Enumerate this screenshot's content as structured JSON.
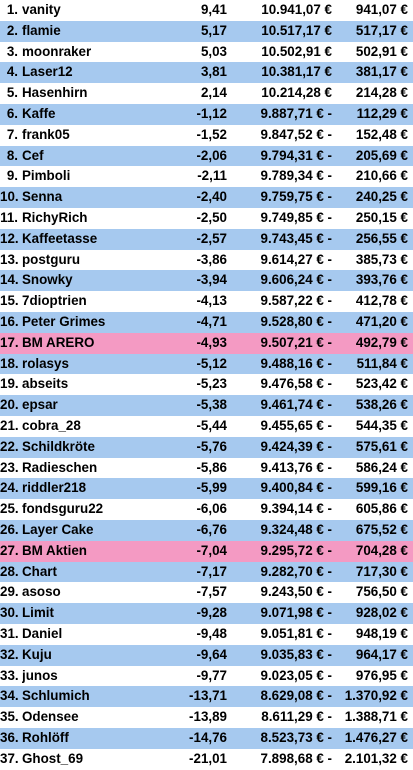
{
  "colors": {
    "white_row": "#ffffff",
    "blue_row": "#a6c9ef",
    "pink_row": "#f49ac3",
    "text": "#000000"
  },
  "rows": [
    {
      "rank": "1.",
      "name": "vanity",
      "pct": "9,41",
      "value": "10.941,07 €",
      "diff": "941,07 €",
      "style": "odd"
    },
    {
      "rank": "2.",
      "name": "flamie",
      "pct": "5,17",
      "value": "10.517,17 €",
      "diff": "517,17 €",
      "style": "even"
    },
    {
      "rank": "3.",
      "name": "moonraker",
      "pct": "5,03",
      "value": "10.502,91 €",
      "diff": "502,91 €",
      "style": "odd"
    },
    {
      "rank": "4.",
      "name": "Laser12",
      "pct": "3,81",
      "value": "10.381,17 €",
      "diff": "381,17 €",
      "style": "even"
    },
    {
      "rank": "5.",
      "name": "Hasenhirn",
      "pct": "2,14",
      "value": "10.214,28 €",
      "diff": "214,28 €",
      "style": "odd"
    },
    {
      "rank": "6.",
      "name": "Kaffe",
      "pct": "-1,12",
      "value": "9.887,71 € -",
      "diff": "112,29 €",
      "style": "even"
    },
    {
      "rank": "7.",
      "name": "frank05",
      "pct": "-1,52",
      "value": "9.847,52 € -",
      "diff": "152,48 €",
      "style": "odd"
    },
    {
      "rank": "8.",
      "name": "Cef",
      "pct": "-2,06",
      "value": "9.794,31 € -",
      "diff": "205,69 €",
      "style": "even"
    },
    {
      "rank": "9.",
      "name": "Pimboli",
      "pct": "-2,11",
      "value": "9.789,34 € -",
      "diff": "210,66 €",
      "style": "odd"
    },
    {
      "rank": "10.",
      "name": "Senna",
      "pct": "-2,40",
      "value": "9.759,75 € -",
      "diff": "240,25 €",
      "style": "even"
    },
    {
      "rank": "11.",
      "name": "RichyRich",
      "pct": "-2,50",
      "value": "9.749,85 € -",
      "diff": "250,15 €",
      "style": "odd"
    },
    {
      "rank": "12.",
      "name": "Kaffeetasse",
      "pct": "-2,57",
      "value": "9.743,45 € -",
      "diff": "256,55 €",
      "style": "even"
    },
    {
      "rank": "13.",
      "name": "postguru",
      "pct": "-3,86",
      "value": "9.614,27 € -",
      "diff": "385,73 €",
      "style": "odd"
    },
    {
      "rank": "14.",
      "name": "Snowky",
      "pct": "-3,94",
      "value": "9.606,24 € -",
      "diff": "393,76 €",
      "style": "even"
    },
    {
      "rank": "15.",
      "name": "7dioptrien",
      "pct": "-4,13",
      "value": "9.587,22 € -",
      "diff": "412,78 €",
      "style": "odd"
    },
    {
      "rank": "16.",
      "name": "Peter Grimes",
      "pct": "-4,71",
      "value": "9.528,80 € -",
      "diff": "471,20 €",
      "style": "even"
    },
    {
      "rank": "17.",
      "name": "BM ARERO",
      "pct": "-4,93",
      "value": "9.507,21 € -",
      "diff": "492,79 €",
      "style": "bm"
    },
    {
      "rank": "18.",
      "name": "rolasys",
      "pct": "-5,12",
      "value": "9.488,16 € -",
      "diff": "511,84 €",
      "style": "even"
    },
    {
      "rank": "19.",
      "name": "abseits",
      "pct": "-5,23",
      "value": "9.476,58 € -",
      "diff": "523,42 €",
      "style": "odd"
    },
    {
      "rank": "20.",
      "name": "epsar",
      "pct": "-5,38",
      "value": "9.461,74 € -",
      "diff": "538,26 €",
      "style": "even"
    },
    {
      "rank": "21.",
      "name": "cobra_28",
      "pct": "-5,44",
      "value": "9.455,65 € -",
      "diff": "544,35 €",
      "style": "odd"
    },
    {
      "rank": "22.",
      "name": "Schildkröte",
      "pct": "-5,76",
      "value": "9.424,39 € -",
      "diff": "575,61 €",
      "style": "even"
    },
    {
      "rank": "23.",
      "name": "Radieschen",
      "pct": "-5,86",
      "value": "9.413,76 € -",
      "diff": "586,24 €",
      "style": "odd"
    },
    {
      "rank": "24.",
      "name": "riddler218",
      "pct": "-5,99",
      "value": "9.400,84 € -",
      "diff": "599,16 €",
      "style": "even"
    },
    {
      "rank": "25.",
      "name": "fondsguru22",
      "pct": "-6,06",
      "value": "9.394,14 € -",
      "diff": "605,86 €",
      "style": "odd"
    },
    {
      "rank": "26.",
      "name": "Layer Cake",
      "pct": "-6,76",
      "value": "9.324,48 € -",
      "diff": "675,52 €",
      "style": "even"
    },
    {
      "rank": "27.",
      "name": "BM Aktien",
      "pct": "-7,04",
      "value": "9.295,72 € -",
      "diff": "704,28 €",
      "style": "bm"
    },
    {
      "rank": "28.",
      "name": "Chart",
      "pct": "-7,17",
      "value": "9.282,70 € -",
      "diff": "717,30 €",
      "style": "even"
    },
    {
      "rank": "29.",
      "name": "asoso",
      "pct": "-7,57",
      "value": "9.243,50 € -",
      "diff": "756,50 €",
      "style": "odd"
    },
    {
      "rank": "30.",
      "name": "Limit",
      "pct": "-9,28",
      "value": "9.071,98 € -",
      "diff": "928,02 €",
      "style": "even"
    },
    {
      "rank": "31.",
      "name": "Daniel",
      "pct": "-9,48",
      "value": "9.051,81 € -",
      "diff": "948,19 €",
      "style": "odd"
    },
    {
      "rank": "32.",
      "name": "Kuju",
      "pct": "-9,64",
      "value": "9.035,83 € -",
      "diff": "964,17 €",
      "style": "even"
    },
    {
      "rank": "33.",
      "name": "junos",
      "pct": "-9,77",
      "value": "9.023,05 € -",
      "diff": "976,95 €",
      "style": "odd"
    },
    {
      "rank": "34.",
      "name": "Schlumich",
      "pct": "-13,71",
      "value": "8.629,08 € -",
      "diff": "1.370,92 €",
      "style": "even"
    },
    {
      "rank": "35.",
      "name": "Odensee",
      "pct": "-13,89",
      "value": "8.611,29 € -",
      "diff": "1.388,71 €",
      "style": "odd"
    },
    {
      "rank": "36.",
      "name": "Rohlöff",
      "pct": "-14,76",
      "value": "8.523,73 € -",
      "diff": "1.476,27 €",
      "style": "even"
    },
    {
      "rank": "37.",
      "name": "Ghost_69",
      "pct": "-21,01",
      "value": "7.898,68 € -",
      "diff": "2.101,32 €",
      "style": "odd"
    }
  ]
}
